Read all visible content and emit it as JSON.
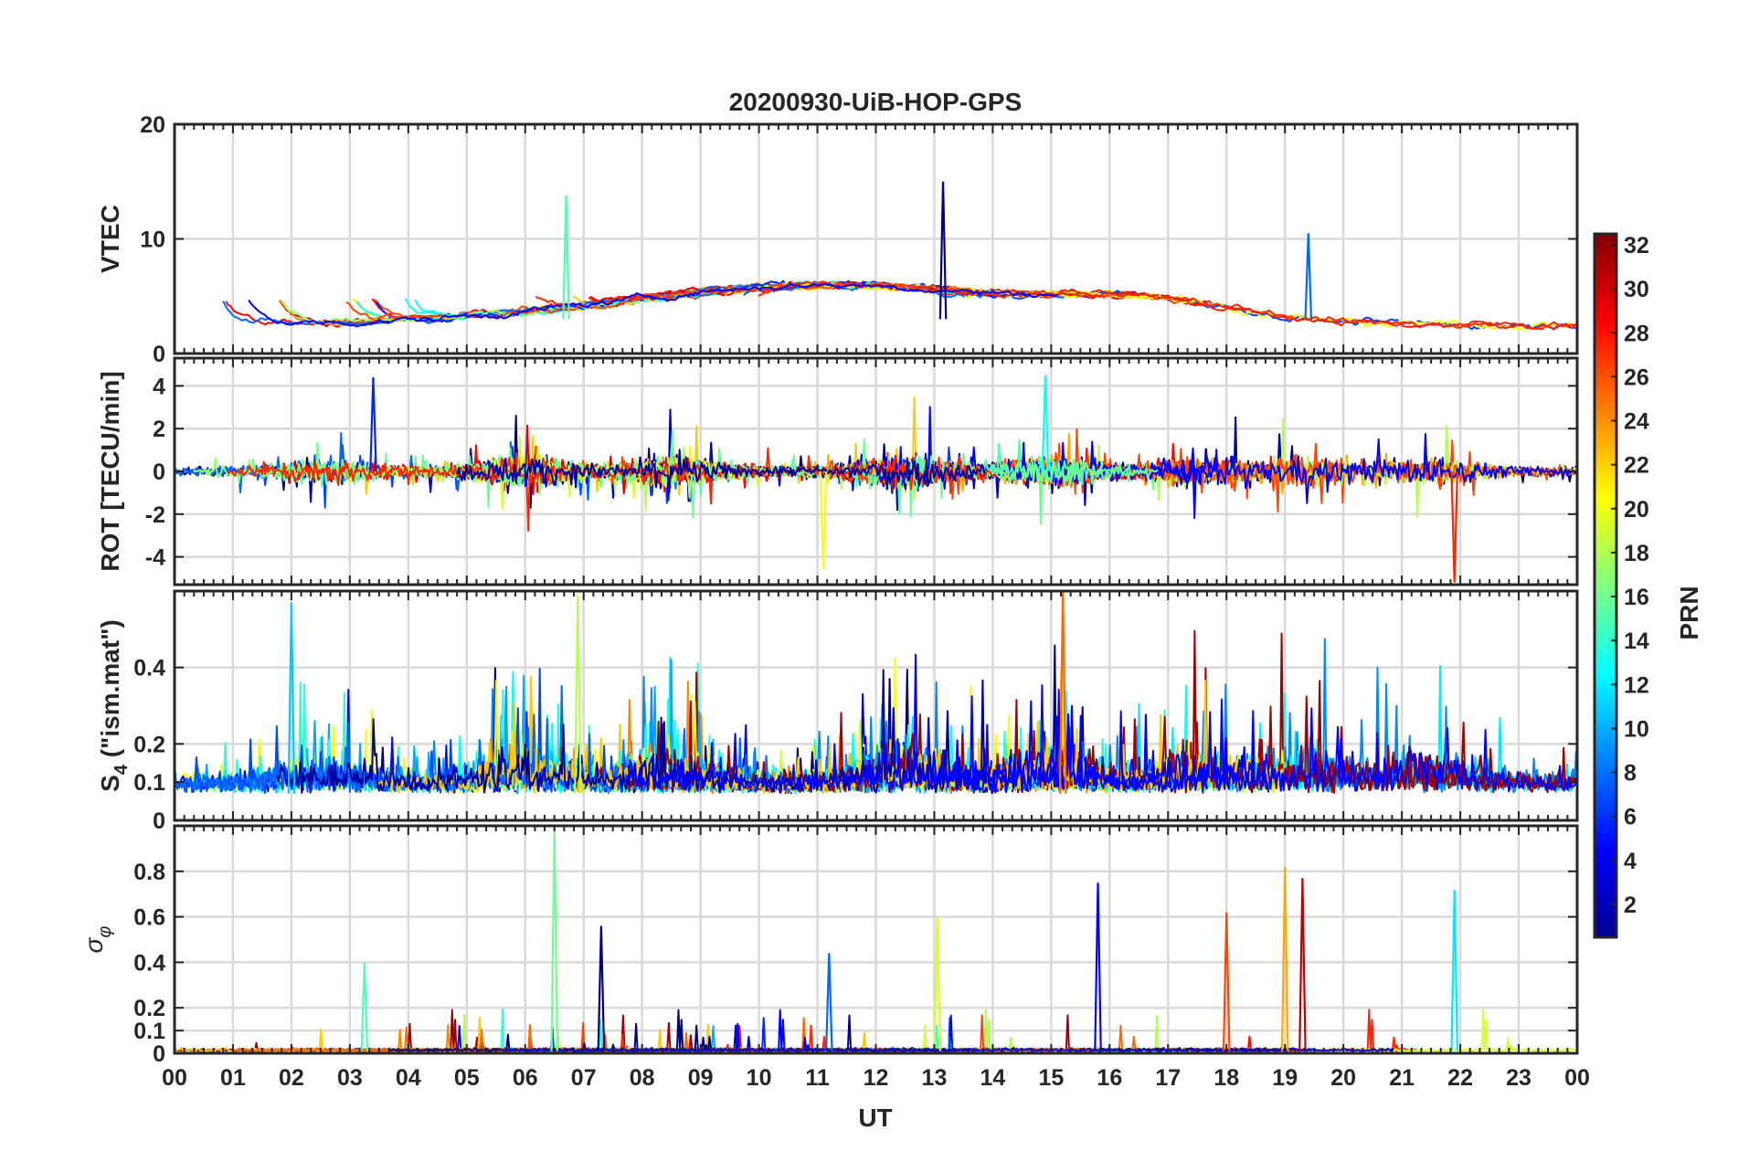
{
  "chart_data": {
    "type": "line",
    "title": "20200930-UiB-HOP-GPS",
    "xlabel": "UT",
    "x_ticks": [
      "00",
      "01",
      "02",
      "03",
      "04",
      "05",
      "06",
      "07",
      "08",
      "09",
      "10",
      "11",
      "12",
      "13",
      "14",
      "15",
      "16",
      "17",
      "18",
      "19",
      "20",
      "21",
      "22",
      "23",
      "00"
    ],
    "xlim_hours": [
      0,
      24
    ],
    "grid": true,
    "colorbar": {
      "label": "PRN",
      "range": [
        1,
        32
      ],
      "ticks": [
        "32",
        "30",
        "28",
        "26",
        "24",
        "22",
        "20",
        "18",
        "16",
        "14",
        "12",
        "10",
        "8",
        "6",
        "4",
        "2"
      ],
      "colormap": "jet"
    },
    "panels": [
      {
        "ylabel": "VTEC",
        "ylim": [
          0,
          20
        ],
        "yticks": [
          "0",
          "10",
          "20"
        ],
        "ytick_values": [
          0,
          10,
          20
        ],
        "typical_range": [
          1,
          9
        ],
        "notable_peaks": [
          {
            "hour": 13.15,
            "value": 15
          },
          {
            "hour": 19.4,
            "value": 10.5
          },
          {
            "hour": 6.7,
            "value": 13.8
          }
        ]
      },
      {
        "ylabel": "ROT [TECU/min]",
        "ylim": [
          -5.3,
          5.3
        ],
        "yticks": [
          "-4",
          "-2",
          "0",
          "2",
          "4"
        ],
        "ytick_values": [
          -4,
          -2,
          0,
          2,
          4
        ],
        "typical_range": [
          -2.5,
          2.5
        ],
        "notable_peaks": [
          {
            "hour": 3.4,
            "value": 4.4
          },
          {
            "hour": 14.9,
            "value": 4.5
          },
          {
            "hour": 11.1,
            "value": -4.6
          },
          {
            "hour": 21.9,
            "value": -5.2
          }
        ]
      },
      {
        "ylabel_main": "S",
        "ylabel_sub": "4",
        "ylabel_rest": " (\"ism.mat\")",
        "ylim": [
          0,
          0.6
        ],
        "yticks": [
          "0",
          "0.1",
          "0.2",
          "0.4"
        ],
        "ytick_values": [
          0,
          0.1,
          0.2,
          0.4
        ],
        "typical_range": [
          0.06,
          0.35
        ],
        "notable_peaks": [
          {
            "hour": 2.0,
            "value": 0.57
          },
          {
            "hour": 6.9,
            "value": 0.59
          },
          {
            "hour": 15.2,
            "value": 0.6
          }
        ]
      },
      {
        "ylabel_main": "σ",
        "ylabel_sub": "φ",
        "ylim": [
          0,
          1.0
        ],
        "yticks": [
          "0",
          "0.1",
          "0.2",
          "0.4",
          "0.6",
          "0.8"
        ],
        "ytick_values": [
          0,
          0.1,
          0.2,
          0.4,
          0.6,
          0.8
        ],
        "typical_range": [
          0,
          0.05
        ],
        "notable_peaks": [
          {
            "hour": 6.5,
            "value": 1.0
          },
          {
            "hour": 19.0,
            "value": 0.82
          },
          {
            "hour": 19.3,
            "value": 0.77
          },
          {
            "hour": 15.8,
            "value": 0.75
          },
          {
            "hour": 21.9,
            "value": 0.72
          },
          {
            "hour": 13.05,
            "value": 0.6
          },
          {
            "hour": 18.0,
            "value": 0.62
          },
          {
            "hour": 7.3,
            "value": 0.56
          },
          {
            "hour": 11.2,
            "value": 0.44
          },
          {
            "hour": 3.25,
            "value": 0.4
          }
        ]
      }
    ]
  }
}
